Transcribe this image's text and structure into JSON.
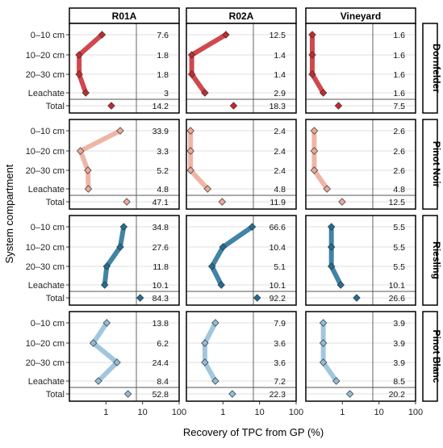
{
  "chart_data": {
    "type": "line",
    "x_scale": "log",
    "xlabel": "Recovery of TPC from GP (%)",
    "ylabel": "System compartment",
    "xlim": [
      0.1,
      100
    ],
    "xticks": [
      "1",
      "10",
      "100"
    ],
    "columns": [
      "R01A",
      "R02A",
      "Vineyard"
    ],
    "rows": [
      "Dornfelder",
      "Pinot Noir",
      "Riesling",
      "Pinot Blanc"
    ],
    "categories": [
      "0–10 cm",
      "10–20 cm",
      "20–30 cm",
      "Leachate",
      "Total"
    ],
    "grid": true,
    "series_colors": {
      "Dornfelder": "#c8282e",
      "Pinot Noir": "#eba898",
      "Riesling": "#1f6f96",
      "Pinot Blanc": "#91bcd8"
    },
    "panels": [
      {
        "row": "Dornfelder",
        "column": "R01A",
        "values": [
          7.6,
          1.8,
          1.8,
          3
        ],
        "total": 14.2
      },
      {
        "row": "Dornfelder",
        "column": "R02A",
        "values": [
          12.5,
          1.4,
          1.4,
          2.9
        ],
        "total": 18.3
      },
      {
        "row": "Dornfelder",
        "column": "Vineyard",
        "values": [
          1.6,
          1.6,
          1.6,
          1.6
        ],
        "total": 7.5
      },
      {
        "row": "Pinot Noir",
        "column": "R01A",
        "values": [
          33.9,
          3.3,
          5.2,
          4.8
        ],
        "total": 47.1
      },
      {
        "row": "Pinot Noir",
        "column": "R02A",
        "values": [
          2.4,
          2.4,
          2.4,
          4.8
        ],
        "total": 11.9
      },
      {
        "row": "Pinot Noir",
        "column": "Vineyard",
        "values": [
          2.6,
          2.6,
          2.6,
          4.8
        ],
        "total": 12.5
      },
      {
        "row": "Riesling",
        "column": "R01A",
        "values": [
          34.8,
          27.6,
          11.8,
          10.1
        ],
        "total": 84.3
      },
      {
        "row": "Riesling",
        "column": "R02A",
        "values": [
          66.6,
          10.4,
          5.1,
          10.1
        ],
        "total": 92.2
      },
      {
        "row": "Riesling",
        "column": "Vineyard",
        "values": [
          5.5,
          5.5,
          5.5,
          10.1
        ],
        "total": 26.6
      },
      {
        "row": "Pinot Blanc",
        "column": "R01A",
        "values": [
          13.8,
          6.2,
          24.4,
          8.4
        ],
        "total": 52.8
      },
      {
        "row": "Pinot Blanc",
        "column": "R02A",
        "values": [
          7.9,
          3.6,
          3.6,
          7.2
        ],
        "total": 22.3
      },
      {
        "row": "Pinot Blanc",
        "column": "Vineyard",
        "values": [
          3.9,
          3.9,
          3.9,
          8.5
        ],
        "total": 20.2
      }
    ],
    "plotted_points": [
      {
        "row": "Dornfelder",
        "column": "R01A",
        "x": [
          0.78,
          0.185,
          0.185,
          0.28
        ],
        "total_x": 1.4
      },
      {
        "row": "Dornfelder",
        "column": "R02A",
        "x": [
          1.2,
          0.14,
          0.14,
          0.32
        ],
        "total_x": 1.95
      },
      {
        "row": "Dornfelder",
        "column": "Vineyard",
        "x": [
          0.15,
          0.15,
          0.15,
          0.3
        ],
        "total_x": 0.78
      },
      {
        "row": "Pinot Noir",
        "column": "R01A",
        "x": [
          2.45,
          0.2,
          0.32,
          0.33
        ],
        "total_x": 3.7
      },
      {
        "row": "Pinot Noir",
        "column": "R02A",
        "x": [
          0.13,
          0.13,
          0.13,
          0.38
        ],
        "total_x": 0.95
      },
      {
        "row": "Pinot Noir",
        "column": "Vineyard",
        "x": [
          0.17,
          0.17,
          0.17,
          0.38
        ],
        "total_x": 0.98
      },
      {
        "row": "Riesling",
        "column": "R01A",
        "x": [
          3.05,
          2.45,
          1.05,
          0.92
        ],
        "total_x": 8.6
      },
      {
        "row": "Riesling",
        "column": "R02A",
        "x": [
          6.3,
          1.0,
          0.5,
          0.9
        ],
        "total_x": 8.6
      },
      {
        "row": "Riesling",
        "column": "Vineyard",
        "x": [
          0.5,
          0.5,
          0.5,
          0.9
        ],
        "total_x": 2.45
      },
      {
        "row": "Pinot Blanc",
        "column": "R01A",
        "x": [
          1.05,
          0.45,
          2.0,
          0.62
        ],
        "total_x": 4.0
      },
      {
        "row": "Pinot Blanc",
        "column": "R02A",
        "x": [
          0.62,
          0.32,
          0.32,
          0.62
        ],
        "total_x": 1.8
      },
      {
        "row": "Pinot Blanc",
        "column": "Vineyard",
        "x": [
          0.3,
          0.3,
          0.3,
          0.68
        ],
        "total_x": 1.6
      }
    ]
  }
}
